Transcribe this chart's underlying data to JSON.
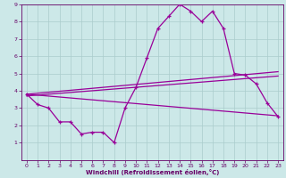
{
  "xlabel": "Windchill (Refroidissement éolien,°C)",
  "background_color": "#cce8e8",
  "line_color": "#990099",
  "xlim": [
    -0.5,
    23.5
  ],
  "ylim": [
    0,
    9
  ],
  "yticks": [
    1,
    2,
    3,
    4,
    5,
    6,
    7,
    8,
    9
  ],
  "xticks": [
    0,
    1,
    2,
    3,
    4,
    5,
    6,
    7,
    8,
    9,
    10,
    11,
    12,
    13,
    14,
    15,
    16,
    17,
    18,
    19,
    20,
    21,
    22,
    23
  ],
  "x_data": [
    0,
    1,
    2,
    3,
    4,
    5,
    6,
    7,
    8,
    9,
    10,
    11,
    12,
    13,
    14,
    15,
    16,
    17,
    18,
    19,
    20,
    21,
    22,
    23
  ],
  "main_curve": [
    3.8,
    3.2,
    3.0,
    2.2,
    2.2,
    1.5,
    1.6,
    1.6,
    1.0,
    3.0,
    4.2,
    5.9,
    7.6,
    8.3,
    9.0,
    8.6,
    8.0,
    8.6,
    7.6,
    5.0,
    4.9,
    4.4,
    3.3,
    2.5
  ],
  "upper_line_x": [
    0,
    23
  ],
  "upper_line_y": [
    3.8,
    5.1
  ],
  "middle_line_x": [
    0,
    23
  ],
  "middle_line_y": [
    3.7,
    4.85
  ],
  "lower_line_x": [
    0,
    23
  ],
  "lower_line_y": [
    3.8,
    2.55
  ],
  "grid_color": "#aacccc",
  "tick_color": "#660066",
  "xlabel_color": "#660066"
}
